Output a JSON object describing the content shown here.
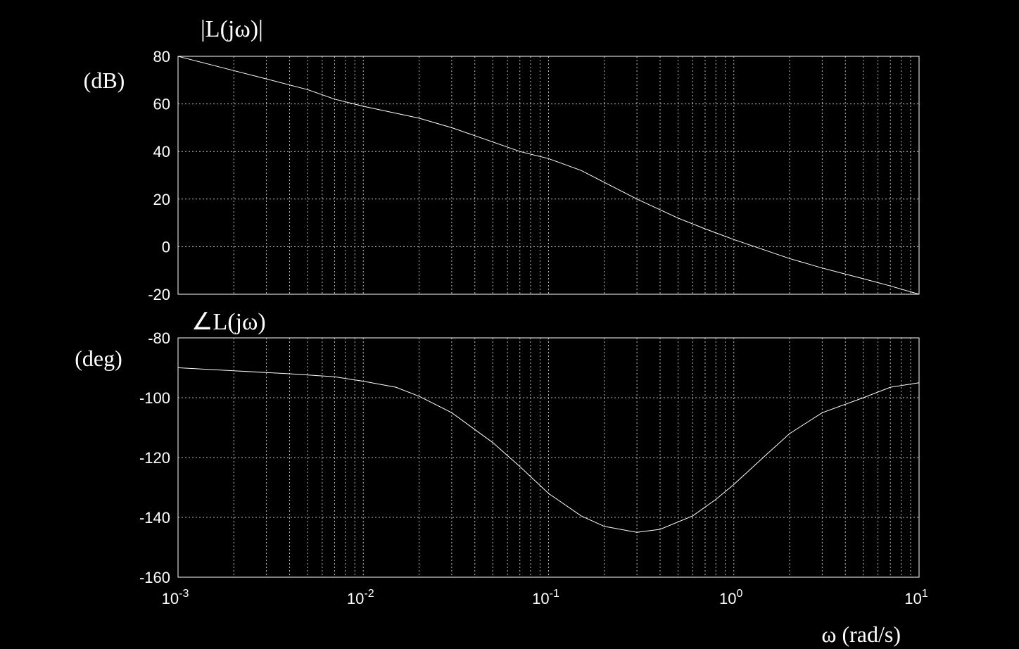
{
  "chart_data": [
    {
      "type": "line",
      "title": "|L(jω)|",
      "ylabel": "(dB)",
      "xscale": "log",
      "xlim": [
        0.001,
        10
      ],
      "ylim": [
        -20,
        80
      ],
      "yticks": [
        "80",
        "60",
        "40",
        "20",
        "0",
        "-20"
      ],
      "grid": true,
      "series": [
        {
          "x": [
            0.001,
            0.002,
            0.003,
            0.005,
            0.007,
            0.01,
            0.02,
            0.03,
            0.05,
            0.07,
            0.1,
            0.15,
            0.2,
            0.3,
            0.5,
            0.7,
            1,
            2,
            3,
            5,
            7,
            10
          ],
          "y": [
            80,
            74,
            70.5,
            66,
            62,
            59,
            54,
            50,
            44,
            40,
            37,
            32,
            27,
            20,
            12,
            7.5,
            3,
            -5,
            -9,
            -13.5,
            -16.5,
            -20
          ]
        }
      ]
    },
    {
      "type": "line",
      "title": "∠L(jω)",
      "ylabel": "(deg)",
      "xlabel": "ω (rad/s)",
      "xscale": "log",
      "xlim": [
        0.001,
        10
      ],
      "ylim": [
        -160,
        -80
      ],
      "yticks": [
        "-80",
        "-100",
        "-120",
        "-140",
        "-160"
      ],
      "xticks": [
        {
          "base": "10",
          "exp": "-3"
        },
        {
          "base": "10",
          "exp": "-2"
        },
        {
          "base": "10",
          "exp": "-1"
        },
        {
          "base": "10",
          "exp": "0"
        },
        {
          "base": "10",
          "exp": "1"
        }
      ],
      "grid": true,
      "series": [
        {
          "x": [
            0.001,
            0.002,
            0.004,
            0.007,
            0.01,
            0.015,
            0.02,
            0.03,
            0.05,
            0.07,
            0.1,
            0.15,
            0.2,
            0.3,
            0.4,
            0.6,
            0.8,
            1,
            1.5,
            2,
            3,
            5,
            7,
            10
          ],
          "y": [
            -90,
            -91,
            -92,
            -93,
            -94.5,
            -96.5,
            -99.5,
            -105,
            -115,
            -123,
            -132,
            -139.5,
            -143,
            -145,
            -144,
            -139.5,
            -134,
            -129,
            -119,
            -112,
            -105,
            -100,
            -96.5,
            -95
          ]
        }
      ]
    }
  ]
}
